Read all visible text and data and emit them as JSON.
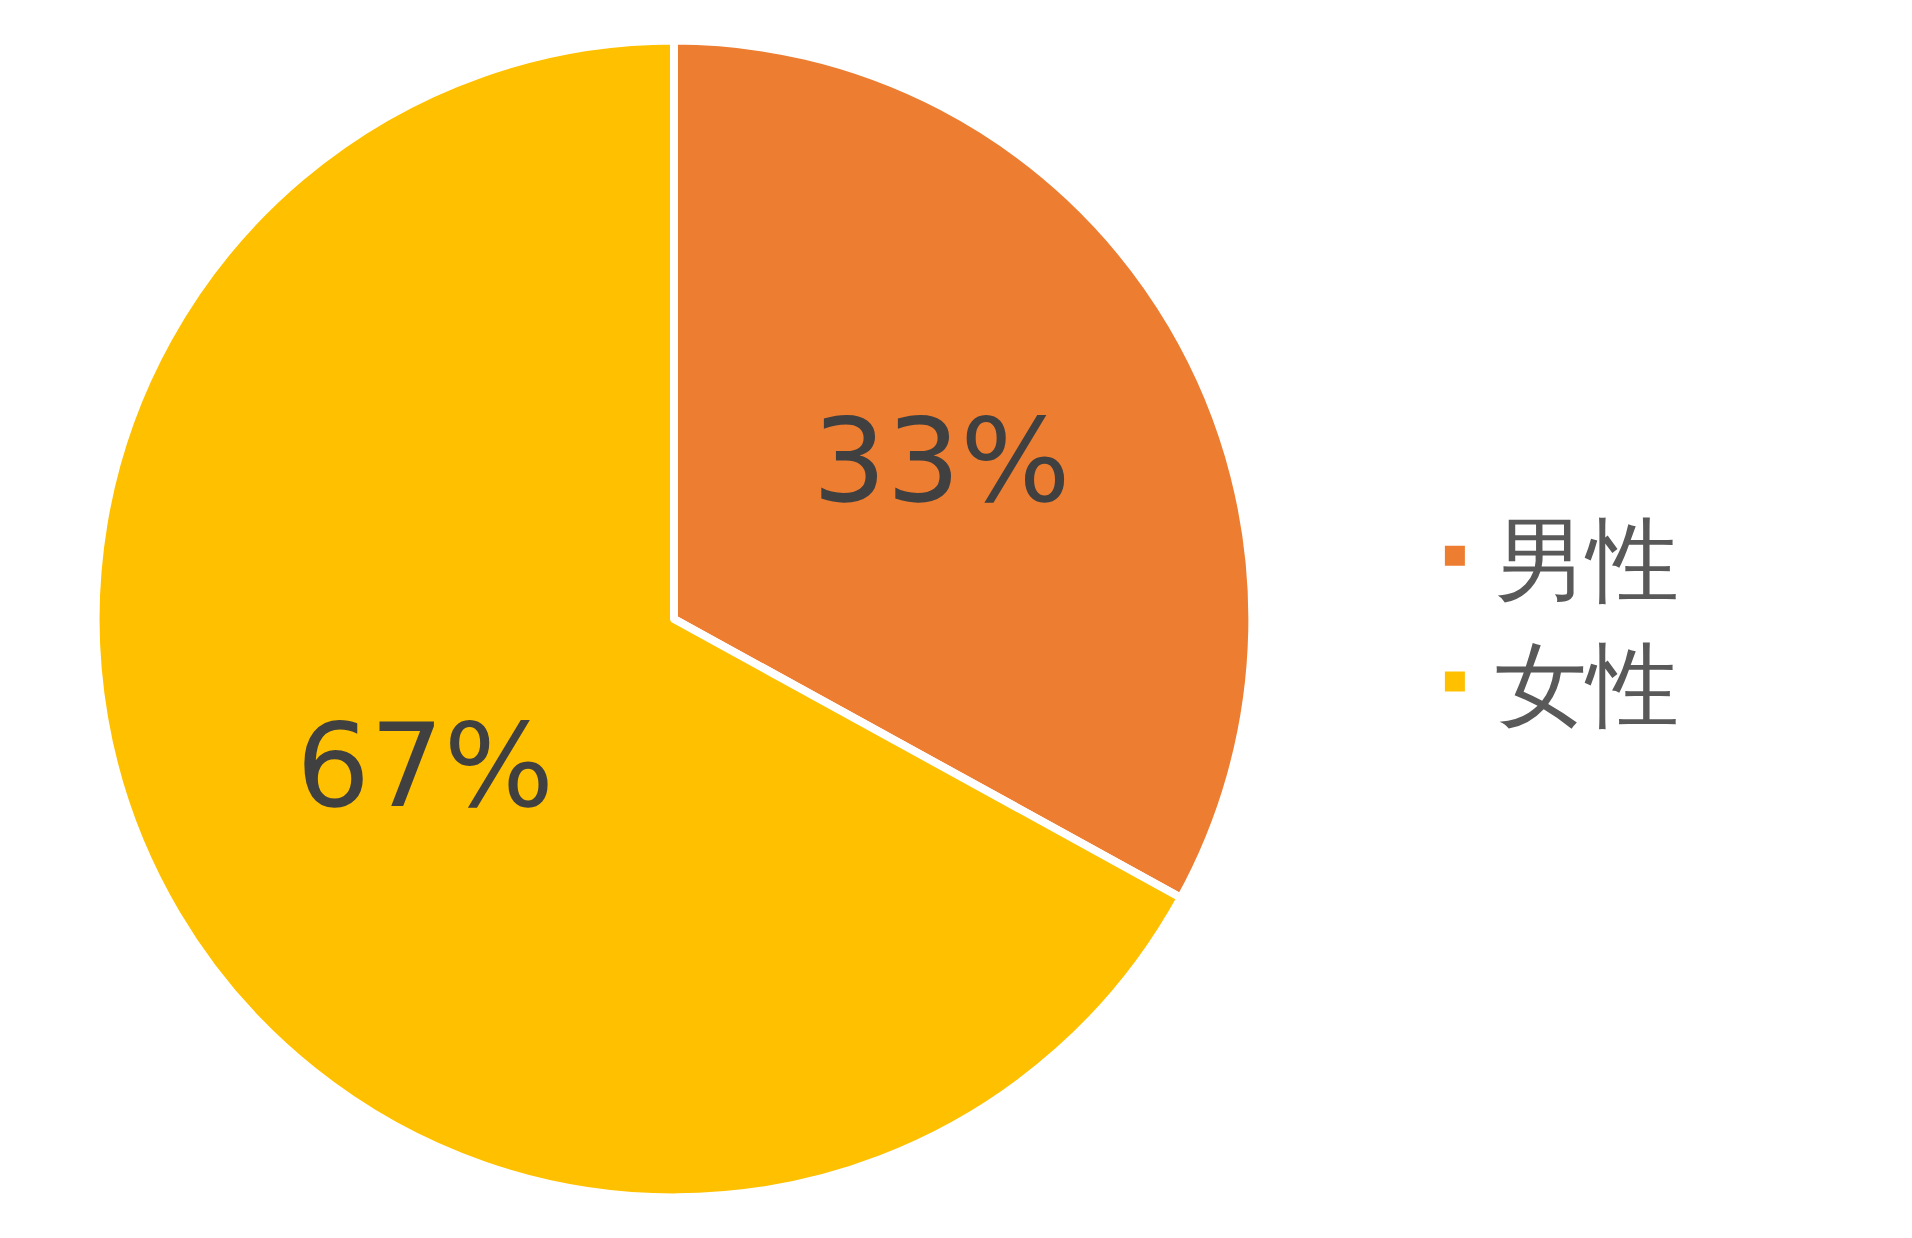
{
  "chart_data": {
    "type": "pie",
    "categories": [
      "男性",
      "女性"
    ],
    "values": [
      33,
      67
    ],
    "colors": [
      "#ed7d31",
      "#ffc000"
    ],
    "value_labels": [
      "33%",
      "67%"
    ],
    "legend": "right"
  }
}
